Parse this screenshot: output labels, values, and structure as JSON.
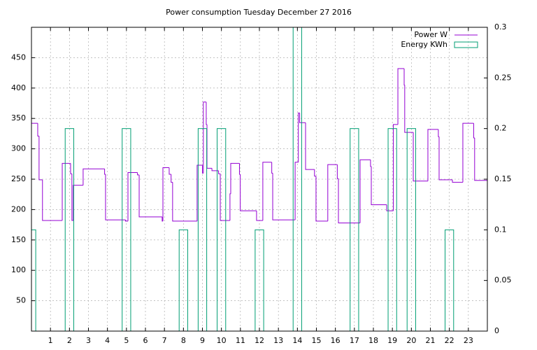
{
  "chart_data": {
    "type": "step",
    "title": "Power consumption Tuesday December 27 2016",
    "xlim": [
      0,
      24
    ],
    "xticks": [
      1,
      2,
      3,
      4,
      5,
      6,
      7,
      8,
      9,
      10,
      11,
      12,
      13,
      14,
      15,
      16,
      17,
      18,
      19,
      20,
      21,
      22,
      23
    ],
    "ylim": [
      0,
      500
    ],
    "yticks": [
      50,
      100,
      150,
      200,
      250,
      300,
      350,
      400,
      450
    ],
    "y2lim": [
      0,
      0.3
    ],
    "y2ticks": [
      0,
      0.05,
      0.1,
      0.15,
      0.2,
      0.25,
      0.3
    ],
    "grid": true,
    "legend": "top-right",
    "series": [
      {
        "name": "Power W",
        "color": "#9400d3",
        "style": "steps",
        "x": [
          0,
          0.33,
          0.4,
          0.58,
          1.62,
          2.06,
          2.13,
          2.2,
          2.72,
          3.85,
          3.9,
          4.95,
          5.08,
          5.58,
          5.67,
          6.88,
          6.92,
          7.25,
          7.35,
          7.43,
          8.72,
          9.0,
          9.05,
          9.2,
          9.24,
          9.5,
          9.85,
          9.94,
          10.45,
          10.49,
          10.95,
          10.99,
          11.85,
          12.18,
          12.65,
          12.7,
          13.88,
          14.05,
          14.12,
          14.43,
          14.9,
          14.98,
          15.6,
          16.1,
          16.16,
          17.3,
          17.85,
          17.89,
          18.7,
          19.05,
          19.29,
          19.62,
          19.65,
          20.1,
          20.87,
          21.42,
          21.46,
          22.16,
          22.71,
          23.28,
          23.33,
          24
        ],
        "values": [
          342,
          321,
          249,
          182,
          276,
          259,
          182,
          240,
          267,
          258,
          183,
          181,
          261,
          257,
          188,
          181,
          269,
          258,
          245,
          181,
          273,
          260,
          377,
          340,
          268,
          264,
          259,
          182,
          226,
          276,
          258,
          198,
          182,
          278,
          260,
          183,
          278,
          359,
          343,
          266,
          255,
          181,
          274,
          251,
          178,
          282,
          271,
          208,
          198,
          340,
          432,
          405,
          327,
          247,
          332,
          320,
          249,
          245,
          342,
          318,
          248,
          248
        ]
      },
      {
        "name": "Energy KWh",
        "color": "#009e73",
        "style": "boxes",
        "axis": "y2",
        "box_width": 0.45,
        "x": [
          0,
          2,
          5,
          8,
          9,
          10,
          12,
          14,
          17,
          19,
          20,
          22
        ],
        "values": [
          0.1,
          0.2,
          0.2,
          0.1,
          0.2,
          0.2,
          0.1,
          0.3,
          0.2,
          0.2,
          0.2,
          0.1
        ]
      }
    ]
  }
}
